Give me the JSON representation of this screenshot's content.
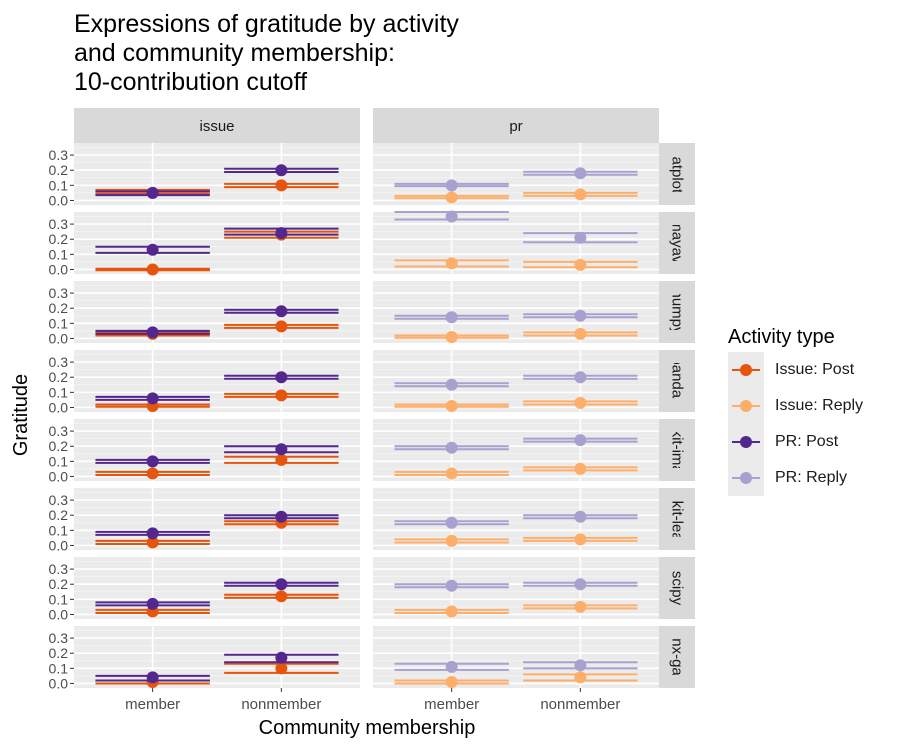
{
  "title_lines": [
    "Expressions of gratitude by activity",
    "and community membership:",
    "10-contribution cutoff"
  ],
  "legend": {
    "title": "Activity type",
    "items": [
      {
        "label": "Issue: Post",
        "color": "#e6550d"
      },
      {
        "label": "Issue: Reply",
        "color": "#fdae6b"
      },
      {
        "label": "PR: Post",
        "color": "#54278f"
      },
      {
        "label": "PR: Reply",
        "color": "#a7a1cf"
      }
    ]
  },
  "chart_data": {
    "type": "scatter",
    "title": "Expressions of gratitude by activity and community membership: 10-contribution cutoff",
    "xlabel": "Community membership",
    "ylabel": "Gratitude",
    "categories": [
      "member",
      "nonmember"
    ],
    "ylim": [
      -0.03,
      0.38
    ],
    "yticks": [
      0.0,
      0.1,
      0.2,
      0.3
    ],
    "ytick_labels": [
      "0.0",
      "0.1",
      "0.2",
      "0.3"
    ],
    "grid": true,
    "legend_position": "right",
    "column_facets": [
      "issue",
      "pr"
    ],
    "row_facets": [
      "matplotlib",
      "mayavi",
      "numpy",
      "pandas",
      "scikit-image",
      "scikit-learn",
      "scipy",
      "sphinx-gallery"
    ],
    "row_facet_labels": [
      "natplotli",
      "mayavi",
      "numpy",
      "pandas",
      "ikit-ima",
      "ikit-lea",
      "scipy",
      "inx-gal"
    ],
    "series_names": [
      "Issue: Post",
      "Issue: Reply",
      "PR: Post",
      "PR: Reply"
    ],
    "panels": [
      {
        "row": "matplotlib",
        "column": "issue",
        "series": [
          {
            "name": "Issue: Post",
            "values": [
              0.05,
              0.1
            ],
            "intervals": [
              [
                0.045,
                0.07
              ],
              [
                0.088,
                0.11
              ]
            ]
          },
          {
            "name": "PR: Post",
            "values": [
              0.05,
              0.2
            ],
            "intervals": [
              [
                0.035,
                0.06
              ],
              [
                0.188,
                0.21
              ]
            ]
          }
        ]
      },
      {
        "row": "matplotlib",
        "column": "pr",
        "series": [
          {
            "name": "Issue: Reply",
            "values": [
              0.02,
              0.04
            ],
            "intervals": [
              [
                0.015,
                0.03
              ],
              [
                0.03,
                0.05
              ]
            ]
          },
          {
            "name": "PR: Reply",
            "values": [
              0.1,
              0.18
            ],
            "intervals": [
              [
                0.095,
                0.11
              ],
              [
                0.17,
                0.19
              ]
            ]
          }
        ]
      },
      {
        "row": "mayavi",
        "column": "issue",
        "series": [
          {
            "name": "Issue: Post",
            "values": [
              0.0,
              0.23
            ],
            "intervals": [
              [
                -0.005,
                0.005
              ],
              [
                0.21,
                0.25
              ]
            ]
          },
          {
            "name": "PR: Post",
            "values": [
              0.13,
              0.24
            ],
            "intervals": [
              [
                0.11,
                0.15
              ],
              [
                0.23,
                0.27
              ]
            ]
          }
        ]
      },
      {
        "row": "mayavi",
        "column": "pr",
        "series": [
          {
            "name": "Issue: Reply",
            "values": [
              0.04,
              0.03
            ],
            "intervals": [
              [
                0.02,
                0.06
              ],
              [
                0.015,
                0.05
              ]
            ]
          },
          {
            "name": "PR: Reply",
            "values": [
              0.35,
              0.21
            ],
            "intervals": [
              [
                0.33,
                0.38
              ],
              [
                0.18,
                0.24
              ]
            ]
          }
        ]
      },
      {
        "row": "numpy",
        "column": "issue",
        "series": [
          {
            "name": "Issue: Post",
            "values": [
              0.03,
              0.08
            ],
            "intervals": [
              [
                0.02,
                0.04
              ],
              [
                0.07,
                0.09
              ]
            ]
          },
          {
            "name": "PR: Post",
            "values": [
              0.04,
              0.18
            ],
            "intervals": [
              [
                0.03,
                0.05
              ],
              [
                0.17,
                0.19
              ]
            ]
          }
        ]
      },
      {
        "row": "numpy",
        "column": "pr",
        "series": [
          {
            "name": "Issue: Reply",
            "values": [
              0.01,
              0.03
            ],
            "intervals": [
              [
                0.005,
                0.02
              ],
              [
                0.02,
                0.04
              ]
            ]
          },
          {
            "name": "PR: Reply",
            "values": [
              0.14,
              0.15
            ],
            "intervals": [
              [
                0.13,
                0.15
              ],
              [
                0.14,
                0.16
              ]
            ]
          }
        ]
      },
      {
        "row": "pandas",
        "column": "issue",
        "series": [
          {
            "name": "Issue: Post",
            "values": [
              0.01,
              0.08
            ],
            "intervals": [
              [
                0.005,
                0.02
              ],
              [
                0.07,
                0.09
              ]
            ]
          },
          {
            "name": "PR: Post",
            "values": [
              0.06,
              0.2
            ],
            "intervals": [
              [
                0.05,
                0.07
              ],
              [
                0.19,
                0.21
              ]
            ]
          }
        ]
      },
      {
        "row": "pandas",
        "column": "pr",
        "series": [
          {
            "name": "Issue: Reply",
            "values": [
              0.01,
              0.03
            ],
            "intervals": [
              [
                0.005,
                0.02
              ],
              [
                0.02,
                0.04
              ]
            ]
          },
          {
            "name": "PR: Reply",
            "values": [
              0.15,
              0.2
            ],
            "intervals": [
              [
                0.14,
                0.16
              ],
              [
                0.19,
                0.21
              ]
            ]
          }
        ]
      },
      {
        "row": "scikit-image",
        "column": "issue",
        "series": [
          {
            "name": "Issue: Post",
            "values": [
              0.02,
              0.11
            ],
            "intervals": [
              [
                0.01,
                0.03
              ],
              [
                0.09,
                0.13
              ]
            ]
          },
          {
            "name": "PR: Post",
            "values": [
              0.1,
              0.18
            ],
            "intervals": [
              [
                0.09,
                0.11
              ],
              [
                0.16,
                0.2
              ]
            ]
          }
        ]
      },
      {
        "row": "scikit-image",
        "column": "pr",
        "series": [
          {
            "name": "Issue: Reply",
            "values": [
              0.02,
              0.05
            ],
            "intervals": [
              [
                0.01,
                0.03
              ],
              [
                0.04,
                0.06
              ]
            ]
          },
          {
            "name": "PR: Reply",
            "values": [
              0.19,
              0.24
            ],
            "intervals": [
              [
                0.18,
                0.2
              ],
              [
                0.23,
                0.25
              ]
            ]
          }
        ]
      },
      {
        "row": "scikit-learn",
        "column": "issue",
        "series": [
          {
            "name": "Issue: Post",
            "values": [
              0.02,
              0.15
            ],
            "intervals": [
              [
                0.01,
                0.03
              ],
              [
                0.14,
                0.16
              ]
            ]
          },
          {
            "name": "PR: Post",
            "values": [
              0.08,
              0.19
            ],
            "intervals": [
              [
                0.07,
                0.09
              ],
              [
                0.18,
                0.2
              ]
            ]
          }
        ]
      },
      {
        "row": "scikit-learn",
        "column": "pr",
        "series": [
          {
            "name": "Issue: Reply",
            "values": [
              0.03,
              0.04
            ],
            "intervals": [
              [
                0.02,
                0.04
              ],
              [
                0.03,
                0.05
              ]
            ]
          },
          {
            "name": "PR: Reply",
            "values": [
              0.15,
              0.19
            ],
            "intervals": [
              [
                0.14,
                0.16
              ],
              [
                0.18,
                0.2
              ]
            ]
          }
        ]
      },
      {
        "row": "scipy",
        "column": "issue",
        "series": [
          {
            "name": "Issue: Post",
            "values": [
              0.02,
              0.12
            ],
            "intervals": [
              [
                0.01,
                0.03
              ],
              [
                0.11,
                0.13
              ]
            ]
          },
          {
            "name": "PR: Post",
            "values": [
              0.07,
              0.2
            ],
            "intervals": [
              [
                0.06,
                0.08
              ],
              [
                0.19,
                0.21
              ]
            ]
          }
        ]
      },
      {
        "row": "scipy",
        "column": "pr",
        "series": [
          {
            "name": "Issue: Reply",
            "values": [
              0.02,
              0.05
            ],
            "intervals": [
              [
                0.01,
                0.03
              ],
              [
                0.04,
                0.06
              ]
            ]
          },
          {
            "name": "PR: Reply",
            "values": [
              0.19,
              0.2
            ],
            "intervals": [
              [
                0.18,
                0.2
              ],
              [
                0.19,
                0.21
              ]
            ]
          }
        ]
      },
      {
        "row": "sphinx-gallery",
        "column": "issue",
        "series": [
          {
            "name": "Issue: Post",
            "values": [
              0.01,
              0.1
            ],
            "intervals": [
              [
                0.0,
                0.02
              ],
              [
                0.07,
                0.13
              ]
            ]
          },
          {
            "name": "PR: Post",
            "values": [
              0.04,
              0.17
            ],
            "intervals": [
              [
                0.02,
                0.05
              ],
              [
                0.14,
                0.19
              ]
            ]
          }
        ]
      },
      {
        "row": "sphinx-gallery",
        "column": "pr",
        "series": [
          {
            "name": "Issue: Reply",
            "values": [
              0.01,
              0.04
            ],
            "intervals": [
              [
                0.0,
                0.02
              ],
              [
                0.02,
                0.06
              ]
            ]
          },
          {
            "name": "PR: Reply",
            "values": [
              0.11,
              0.12
            ],
            "intervals": [
              [
                0.09,
                0.13
              ],
              [
                0.1,
                0.14
              ]
            ]
          }
        ]
      }
    ]
  }
}
